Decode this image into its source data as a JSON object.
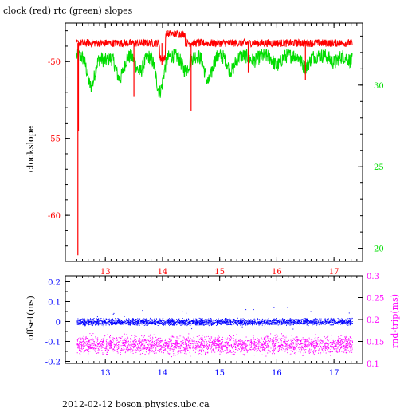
{
  "title": "clock (red) rtc (green) slopes",
  "footer": "2012-02-12  boson.physics.ubc.ca",
  "colors": {
    "red": "#ff0000",
    "green": "#00dd00",
    "blue": "#0000ff",
    "magenta": "#ff00ff",
    "black": "#000000"
  },
  "chart_data": [
    {
      "type": "line",
      "title": "clock (red) rtc (green) slopes",
      "ylabel": "clockslope",
      "y2label": "",
      "x_ticks": [
        "13",
        "14",
        "15",
        "16",
        "17"
      ],
      "xlim": [
        12.3,
        17.5
      ],
      "ylim": [
        -63,
        -47.5
      ],
      "y_ticks": [
        "-50",
        "-55",
        "-60"
      ],
      "y2lim": [
        19.2,
        33.8
      ],
      "y2_ticks": [
        "30",
        "25",
        "20"
      ],
      "series": [
        {
          "name": "clock",
          "color": "red",
          "axis": "left",
          "baseline": -48.8,
          "spikes": [
            {
              "x": 12.52,
              "y": -62.6
            },
            {
              "x": 12.53,
              "y": -54.5
            },
            {
              "x": 13.5,
              "y": -52.3
            },
            {
              "x": 13.99,
              "y": -50.2
            },
            {
              "x": 14.5,
              "y": -53.2
            },
            {
              "x": 15.5,
              "y": -50.7
            },
            {
              "x": 16.5,
              "y": -51.2
            }
          ],
          "features": [
            {
              "x0": 13.95,
              "x1": 14.05,
              "y": -49.8
            },
            {
              "x0": 14.05,
              "x1": 14.4,
              "y": -48.2
            }
          ]
        },
        {
          "name": "rtc",
          "color": "green",
          "axis": "right",
          "baseline": 31.8,
          "dips": [
            {
              "x": 12.75,
              "y": 29.9
            },
            {
              "x": 13.0,
              "y": 31.5
            },
            {
              "x": 13.25,
              "y": 30.4
            },
            {
              "x": 13.6,
              "y": 30.8
            },
            {
              "x": 13.95,
              "y": 29.6
            },
            {
              "x": 14.4,
              "y": 30.9
            },
            {
              "x": 14.8,
              "y": 30.2
            },
            {
              "x": 15.2,
              "y": 30.9
            },
            {
              "x": 15.6,
              "y": 31.5
            },
            {
              "x": 16.0,
              "y": 31.2
            },
            {
              "x": 16.5,
              "y": 31.1
            },
            {
              "x": 17.0,
              "y": 31.4
            },
            {
              "x": 17.3,
              "y": 31.5
            }
          ]
        }
      ]
    },
    {
      "type": "scatter",
      "ylabel": "offset(ms)",
      "y2label": "rnd-trip(ms)",
      "x_ticks": [
        "13",
        "14",
        "15",
        "16",
        "17"
      ],
      "xlim": [
        12.3,
        17.5
      ],
      "ylim": [
        -0.21,
        0.23
      ],
      "y_ticks": [
        "0.2",
        "0.1",
        "0",
        "-0.1",
        "-0.2"
      ],
      "y2lim": [
        0.1,
        0.3
      ],
      "y2_ticks": [
        "0.3",
        "0.25",
        "0.2",
        "0.15",
        "0.1"
      ],
      "series": [
        {
          "name": "offset",
          "color": "blue",
          "axis": "left",
          "center": 0.0,
          "spread": 0.02
        },
        {
          "name": "rnd-trip",
          "color": "magenta",
          "axis": "right",
          "center": 0.143,
          "spread": 0.012
        }
      ]
    }
  ]
}
